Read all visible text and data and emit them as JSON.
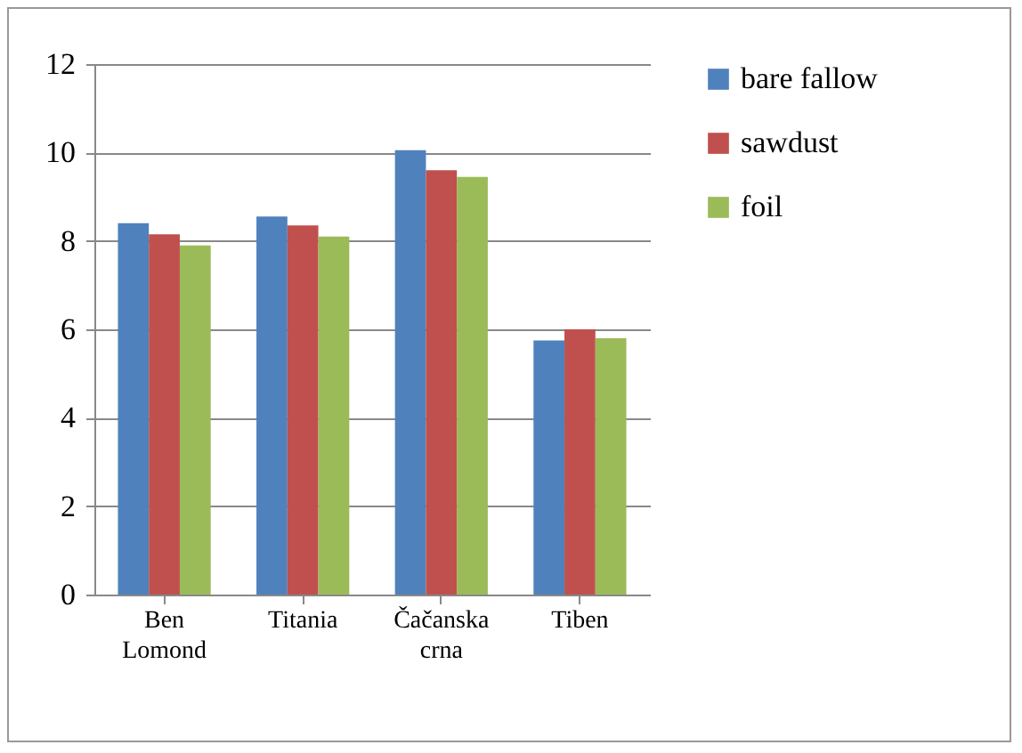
{
  "chart_data": {
    "type": "bar",
    "categories": [
      "Ben Lomond",
      "Titania",
      "Čačanska crna",
      "Tiben"
    ],
    "series": [
      {
        "name": "bare fallow",
        "color": "#4f81bd",
        "values": [
          8.4,
          8.55,
          10.05,
          5.75
        ]
      },
      {
        "name": "sawdust",
        "color": "#c0504d",
        "values": [
          8.15,
          8.35,
          9.6,
          6.0
        ]
      },
      {
        "name": "foil",
        "color": "#9bbb59",
        "values": [
          7.9,
          8.1,
          9.45,
          5.8
        ]
      }
    ],
    "ylim": [
      0,
      12
    ],
    "yticks": [
      0,
      2,
      4,
      6,
      8,
      10,
      12
    ],
    "grid": "y",
    "legend": "right"
  }
}
